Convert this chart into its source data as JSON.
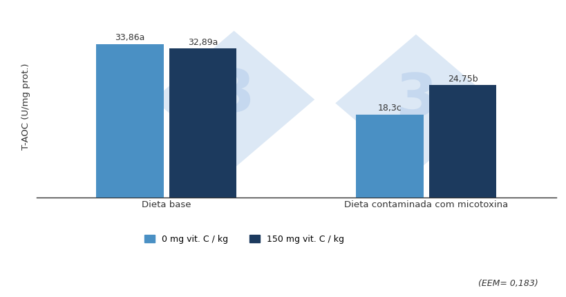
{
  "groups": [
    "Dieta base",
    "Dieta contaminada com micotoxina"
  ],
  "values": [
    [
      33.86,
      32.89
    ],
    [
      18.3,
      24.75
    ]
  ],
  "bar_annotations": [
    [
      "33,86a",
      "32,89a"
    ],
    [
      "18,3c",
      "24,75b"
    ]
  ],
  "colors": [
    "#4a90c4",
    "#1c3a5e"
  ],
  "ylabel": "T-AOC (U/mg prot.)",
  "ylim": [
    0,
    40
  ],
  "bar_width": 0.13,
  "eem_text": "(EEM= 0,183)",
  "legend_labels": [
    "0 mg vit. C / kg",
    "150 mg vit. C / kg"
  ],
  "annotation_fontsize": 9,
  "ylabel_fontsize": 9.5,
  "xlabel_fontsize": 9.5,
  "legend_fontsize": 9,
  "background_color": "#ffffff",
  "watermark_diamond_color": "#dce8f5",
  "watermark_text_color": "#c5d8ef",
  "group_centers": [
    0.25,
    0.75
  ],
  "xlim": [
    0.0,
    1.0
  ]
}
